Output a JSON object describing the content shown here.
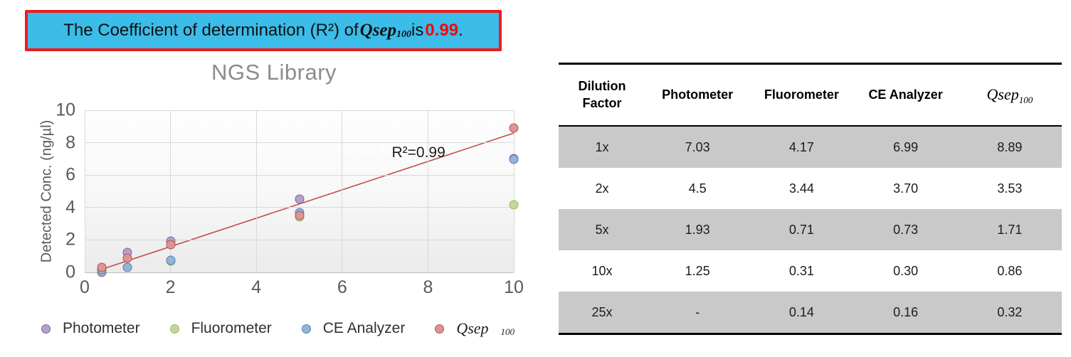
{
  "banner": {
    "prefix": "The Coefficient of determination (R²) of ",
    "qsep": "Qsep",
    "qsep_sub": "100",
    "middle": " is ",
    "value": "0.99",
    "suffix": ".",
    "background_color": "#3bbce9",
    "border_color": "#ee1b1b",
    "value_color": "#ff0000"
  },
  "chart_data": {
    "type": "scatter",
    "title": "NGS Library",
    "xlabel": "",
    "ylabel": "Detected Conc. (ng/µl)",
    "xlim": [
      0,
      10
    ],
    "ylim": [
      0,
      10
    ],
    "xticks": [
      0,
      2,
      4,
      6,
      8,
      10
    ],
    "yticks": [
      0,
      2,
      4,
      6,
      8,
      10
    ],
    "grid": true,
    "legend_position": "bottom",
    "series": [
      {
        "name": "Photometer",
        "fill": "#b3a2c7",
        "border": "#8064a2",
        "x": [
          0.4,
          1,
          2,
          5,
          10
        ],
        "y": [
          0,
          1.25,
          1.93,
          4.5,
          7.03
        ]
      },
      {
        "name": "Fluorometer",
        "fill": "#c3d69b",
        "border": "#9bbb59",
        "x": [
          0.4,
          1,
          2,
          5,
          10
        ],
        "y": [
          0.14,
          0.31,
          0.71,
          3.44,
          4.17
        ]
      },
      {
        "name": "CE Analyzer",
        "fill": "#95b3d7",
        "border": "#4f81bd",
        "x": [
          0.4,
          1,
          2,
          5,
          10
        ],
        "y": [
          0.16,
          0.3,
          0.73,
          3.7,
          6.99
        ]
      },
      {
        "name": "Qsep100",
        "fill": "#d99694",
        "border": "#c0504d",
        "x": [
          0.4,
          1,
          2,
          5,
          10
        ],
        "y": [
          0.32,
          0.86,
          1.71,
          3.53,
          8.89
        ]
      }
    ],
    "trendline": {
      "x1": 0.4,
      "y1": 0.19,
      "x2": 10,
      "y2": 8.59,
      "color": "#c0504d"
    },
    "annotation": "R²=0.99"
  },
  "legend": {
    "items": [
      {
        "label": "Photometer"
      },
      {
        "label": "Fluorometer"
      },
      {
        "label": "CE Analyzer"
      }
    ],
    "qsep": "Qsep",
    "qsep_sub": "100"
  },
  "table": {
    "headers": [
      "Dilution Factor",
      "Photometer",
      "Fluorometer",
      "CE Analyzer"
    ],
    "qsep_header": "Qsep",
    "qsep_header_sub": "100",
    "shaded_row_color": "#c9c9c9",
    "rows": [
      {
        "label": "1x",
        "values": [
          "7.03",
          "4.17",
          "6.99",
          "8.89"
        ],
        "shaded": true
      },
      {
        "label": "2x",
        "values": [
          "4.5",
          "3.44",
          "3.70",
          "3.53"
        ],
        "shaded": false
      },
      {
        "label": "5x",
        "values": [
          "1.93",
          "0.71",
          "0.73",
          "1.71"
        ],
        "shaded": true
      },
      {
        "label": "10x",
        "values": [
          "1.25",
          "0.31",
          "0.30",
          "0.86"
        ],
        "shaded": false
      },
      {
        "label": "25x",
        "values": [
          "-",
          "0.14",
          "0.16",
          "0.32"
        ],
        "shaded": true
      }
    ]
  }
}
